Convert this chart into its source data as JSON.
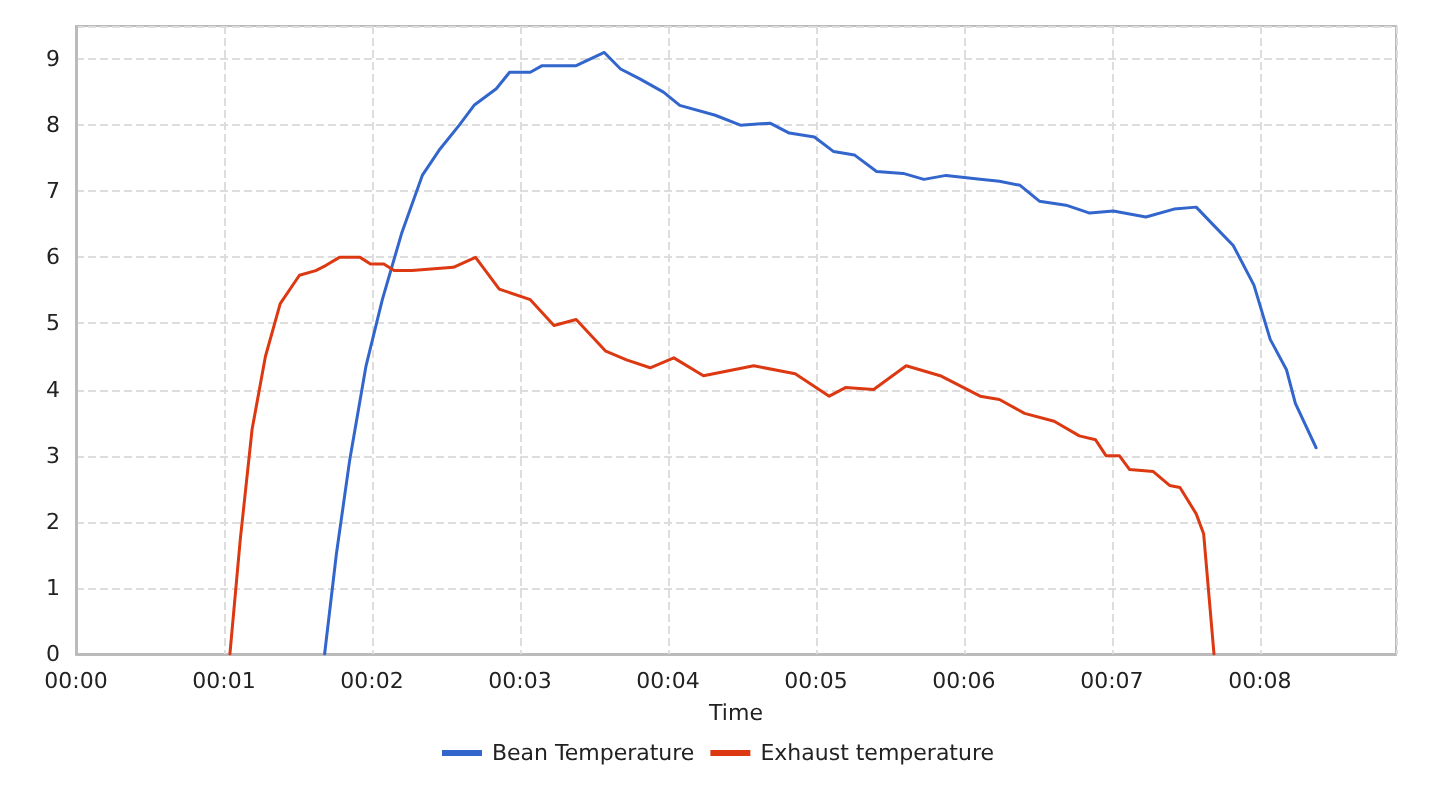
{
  "chart_data": {
    "type": "line",
    "xlabel": "Time",
    "series": [
      {
        "name": "Bean Temperature",
        "color": "#3366cc",
        "x": [
          1.68,
          1.76,
          1.85,
          1.96,
          2.07,
          2.2,
          2.34,
          2.46,
          2.59,
          2.69,
          2.84,
          2.93,
          3.07,
          3.15,
          3.38,
          3.57,
          3.68,
          3.81,
          3.97,
          4.08,
          4.32,
          4.49,
          4.69,
          4.82,
          4.99,
          5.12,
          5.26,
          5.41,
          5.59,
          5.73,
          5.88,
          6.11,
          6.24,
          6.38,
          6.51,
          6.69,
          6.85,
          7.01,
          7.23,
          7.42,
          7.57,
          7.69,
          7.82,
          7.96,
          8.07,
          8.18,
          8.24,
          8.38
        ],
        "values": [
          0,
          1.52,
          2.94,
          4.36,
          5.36,
          6.36,
          7.24,
          7.64,
          8.0,
          8.3,
          8.55,
          8.8,
          8.8,
          8.9,
          8.9,
          9.1,
          8.85,
          8.7,
          8.5,
          8.3,
          8.15,
          8.0,
          8.03,
          7.88,
          7.82,
          7.6,
          7.55,
          7.3,
          7.27,
          7.18,
          7.24,
          7.18,
          7.15,
          7.09,
          6.85,
          6.79,
          6.67,
          6.7,
          6.61,
          6.73,
          6.76,
          6.48,
          6.18,
          5.58,
          4.76,
          4.3,
          3.79,
          3.12
        ]
      },
      {
        "name": "Exhaust temperature",
        "color": "#dc3912",
        "x": [
          1.04,
          1.11,
          1.19,
          1.28,
          1.38,
          1.51,
          1.62,
          1.69,
          1.78,
          1.92,
          1.99,
          2.08,
          2.15,
          2.27,
          2.55,
          2.7,
          2.86,
          3.07,
          3.23,
          3.38,
          3.58,
          3.72,
          3.88,
          4.04,
          4.24,
          4.58,
          4.86,
          5.09,
          5.2,
          5.39,
          5.61,
          5.84,
          6.11,
          6.24,
          6.41,
          6.61,
          6.78,
          6.89,
          6.96,
          7.05,
          7.12,
          7.28,
          7.39,
          7.46,
          7.57,
          7.62,
          7.69
        ],
        "values": [
          0,
          1.73,
          3.4,
          4.5,
          5.3,
          5.73,
          5.8,
          5.88,
          6.0,
          6.0,
          5.9,
          5.9,
          5.8,
          5.8,
          5.85,
          6.0,
          5.52,
          5.36,
          4.97,
          5.06,
          4.58,
          4.45,
          4.33,
          4.48,
          4.21,
          4.36,
          4.24,
          3.9,
          4.03,
          4.0,
          4.36,
          4.21,
          3.9,
          3.85,
          3.64,
          3.52,
          3.3,
          3.24,
          3.0,
          3.0,
          2.79,
          2.76,
          2.55,
          2.52,
          2.12,
          1.82,
          0
        ]
      }
    ],
    "xlim": [
      0,
      8.92
    ],
    "xticks": [
      {
        "value": 0,
        "label": "00:00"
      },
      {
        "value": 1,
        "label": "00:01"
      },
      {
        "value": 2,
        "label": "00:02"
      },
      {
        "value": 3,
        "label": "00:03"
      },
      {
        "value": 4,
        "label": "00:04"
      },
      {
        "value": 5,
        "label": "00:05"
      },
      {
        "value": 6,
        "label": "00:06"
      },
      {
        "value": 7,
        "label": "00:07"
      },
      {
        "value": 8,
        "label": "00:08"
      }
    ],
    "ylim": [
      0,
      9.5
    ],
    "yticks": [
      0,
      1,
      2,
      3,
      4,
      5,
      6,
      7,
      8,
      9
    ],
    "grid": true,
    "legend": "bottom",
    "marker": "none",
    "line_style": "solid"
  }
}
